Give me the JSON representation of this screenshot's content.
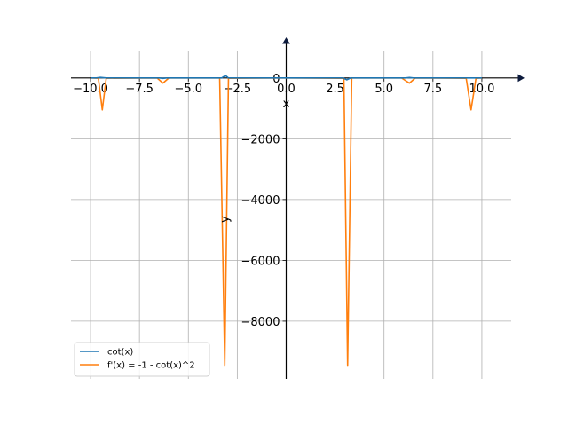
{
  "chart_data": {
    "type": "line",
    "title": "",
    "xlabel": "x",
    "ylabel": "y",
    "xlim": [
      -11.0,
      11.5
    ],
    "ylim": [
      -9900,
      900
    ],
    "xticks": [
      -10.0,
      -7.5,
      -5.0,
      -2.5,
      0.0,
      2.5,
      5.0,
      7.5,
      10.0
    ],
    "xtick_labels": [
      "−10.0",
      "−7.5",
      "−5.0",
      "−2.5",
      "0.0",
      "2.5",
      "5.0",
      "7.5",
      "10.0"
    ],
    "yticks": [
      0,
      -2000,
      -4000,
      -6000,
      -8000
    ],
    "ytick_labels": [
      "0",
      "−2000",
      "−4000",
      "−6000",
      "−8000"
    ],
    "grid": true,
    "legend_position": "lower-left",
    "series": [
      {
        "name": "cot(x)",
        "color": "#1f77b4",
        "x": [
          -10.0,
          -9.7,
          -9.5,
          -9.2,
          -6.5,
          -6.3,
          -6.1,
          -3.3,
          -3.1,
          -2.95,
          0.0,
          2.9,
          3.1,
          3.3,
          6.1,
          6.3,
          6.5,
          9.2,
          9.5,
          9.7,
          10.0
        ],
        "y": [
          0,
          0,
          20,
          0,
          0,
          -15,
          0,
          0,
          80,
          0,
          0,
          0,
          -60,
          0,
          0,
          15,
          0,
          0,
          0,
          0,
          0
        ]
      },
      {
        "name": "f'(x) = -1 - cot(x)^2",
        "color": "#ff7f0e",
        "x": [
          -10.0,
          -9.6,
          -9.4,
          -9.2,
          -6.6,
          -6.3,
          -6.0,
          -3.4,
          -3.14,
          -2.95,
          -0.2,
          0.2,
          2.95,
          3.14,
          3.35,
          5.9,
          6.3,
          6.6,
          9.2,
          9.45,
          9.7,
          10.0
        ],
        "y": [
          -1,
          -10,
          -1050,
          -10,
          -1,
          -170,
          -1,
          -1,
          -9450,
          -10,
          -1,
          -1,
          -10,
          -9450,
          -1,
          -1,
          -170,
          -1,
          -10,
          -1050,
          -10,
          -1
        ]
      }
    ]
  }
}
